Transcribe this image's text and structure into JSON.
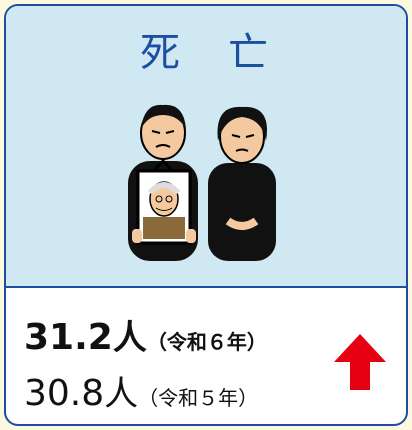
{
  "title": "死　亡",
  "current": {
    "value": 31.2,
    "unit": "人",
    "period": "（令和６年）"
  },
  "previous": {
    "value": 30.8,
    "unit": "人",
    "period": "（令和５年）"
  }
}
